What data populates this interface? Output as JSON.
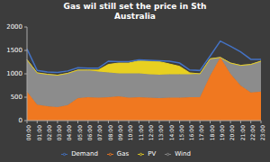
{
  "chart_data": {
    "type": "area",
    "title": "Gas wil still set the price in Sth\nAustralia",
    "categories": [
      "00:00",
      "01:00",
      "02:00",
      "03:00",
      "04:00",
      "05:00",
      "06:00",
      "07:00",
      "08:00",
      "09:00",
      "10:00",
      "11:00",
      "12:00",
      "13:00",
      "14:00",
      "15:00",
      "16:00",
      "17:00",
      "18:00",
      "19:00",
      "20:00",
      "21:00",
      "22:00",
      "23:00"
    ],
    "series": [
      {
        "name": "Gas",
        "color": "#f07820",
        "values": [
          620,
          340,
          310,
          290,
          330,
          480,
          500,
          490,
          500,
          520,
          490,
          500,
          490,
          480,
          490,
          490,
          500,
          500,
          960,
          1350,
          1000,
          750,
          600,
          620
        ]
      },
      {
        "name": "Wind",
        "color": "#8c8c8c",
        "values": [
          680,
          680,
          680,
          680,
          680,
          600,
          580,
          560,
          530,
          490,
          520,
          510,
          500,
          500,
          500,
          500,
          490,
          500,
          360,
          0,
          230,
          430,
          600,
          650
        ]
      },
      {
        "name": "PV",
        "color": "#e8d020",
        "values": [
          0,
          0,
          0,
          0,
          0,
          0,
          0,
          30,
          170,
          220,
          220,
          270,
          280,
          280,
          220,
          170,
          30,
          0,
          0,
          0,
          0,
          0,
          0,
          0
        ]
      },
      {
        "name": "Demand",
        "type": "line",
        "color": "#4472c4",
        "values": [
          1530,
          1070,
          1040,
          1030,
          1060,
          1130,
          1120,
          1120,
          1270,
          1260,
          1260,
          1300,
          1290,
          1280,
          1270,
          1230,
          1080,
          1070,
          1380,
          1700,
          1590,
          1470,
          1310,
          1310
        ]
      }
    ],
    "stacked": true,
    "ylim": [
      0,
      2000
    ],
    "yticks": [
      0,
      500,
      1000,
      1500,
      2000
    ],
    "grid": false,
    "legend": "bottom"
  }
}
